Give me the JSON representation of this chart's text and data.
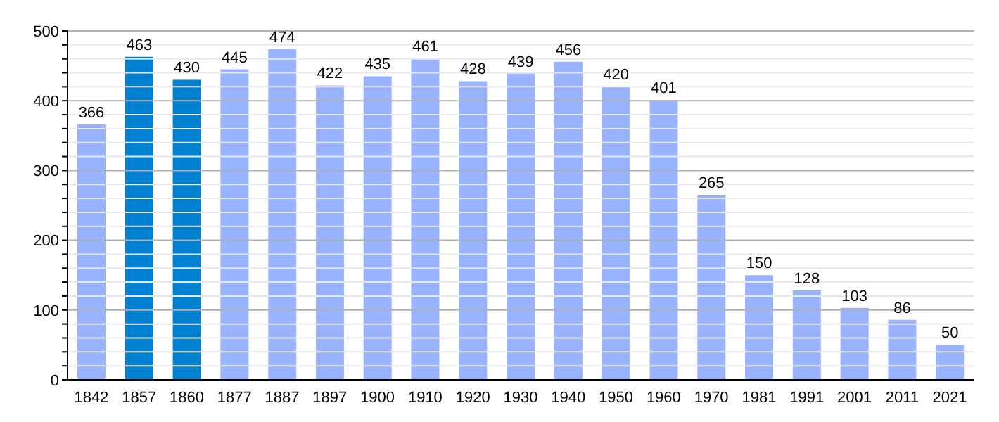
{
  "chart_data": {
    "type": "bar",
    "categories": [
      "1842",
      "1857",
      "1860",
      "1877",
      "1887",
      "1897",
      "1900",
      "1910",
      "1920",
      "1930",
      "1940",
      "1950",
      "1960",
      "1970",
      "1981",
      "1991",
      "2001",
      "2011",
      "2021"
    ],
    "values": [
      366,
      463,
      430,
      445,
      474,
      422,
      435,
      461,
      428,
      439,
      456,
      420,
      401,
      265,
      150,
      128,
      103,
      86,
      50
    ],
    "colors": [
      "#99b3ff",
      "#0080d0",
      "#0080d0",
      "#99b3ff",
      "#99b3ff",
      "#99b3ff",
      "#99b3ff",
      "#99b3ff",
      "#99b3ff",
      "#99b3ff",
      "#99b3ff",
      "#99b3ff",
      "#99b3ff",
      "#99b3ff",
      "#99b3ff",
      "#99b3ff",
      "#99b3ff",
      "#99b3ff",
      "#99b3ff"
    ],
    "ylim": [
      0,
      500
    ],
    "yticks": [
      0,
      {
        "value": 20,
        "label": null
      },
      {
        "value": 40,
        "label": null
      },
      {
        "value": 60,
        "label": null
      },
      {
        "value": 80,
        "label": null
      },
      100,
      {
        "value": 120,
        "label": null
      },
      {
        "value": 140,
        "label": null
      },
      {
        "value": 160,
        "label": null
      },
      {
        "value": 180,
        "label": null
      },
      200,
      {
        "value": 220,
        "label": null
      },
      {
        "value": 240,
        "label": null
      },
      {
        "value": 260,
        "label": null
      },
      {
        "value": 280,
        "label": null
      },
      300,
      {
        "value": 320,
        "label": null
      },
      {
        "value": 340,
        "label": null
      },
      {
        "value": 360,
        "label": null
      },
      {
        "value": 380,
        "label": null
      },
      400,
      {
        "value": 420,
        "label": null
      },
      {
        "value": 440,
        "label": null
      },
      {
        "value": 460,
        "label": null
      },
      {
        "value": 480,
        "label": null
      },
      500
    ],
    "grid": true,
    "data_labels": true
  }
}
